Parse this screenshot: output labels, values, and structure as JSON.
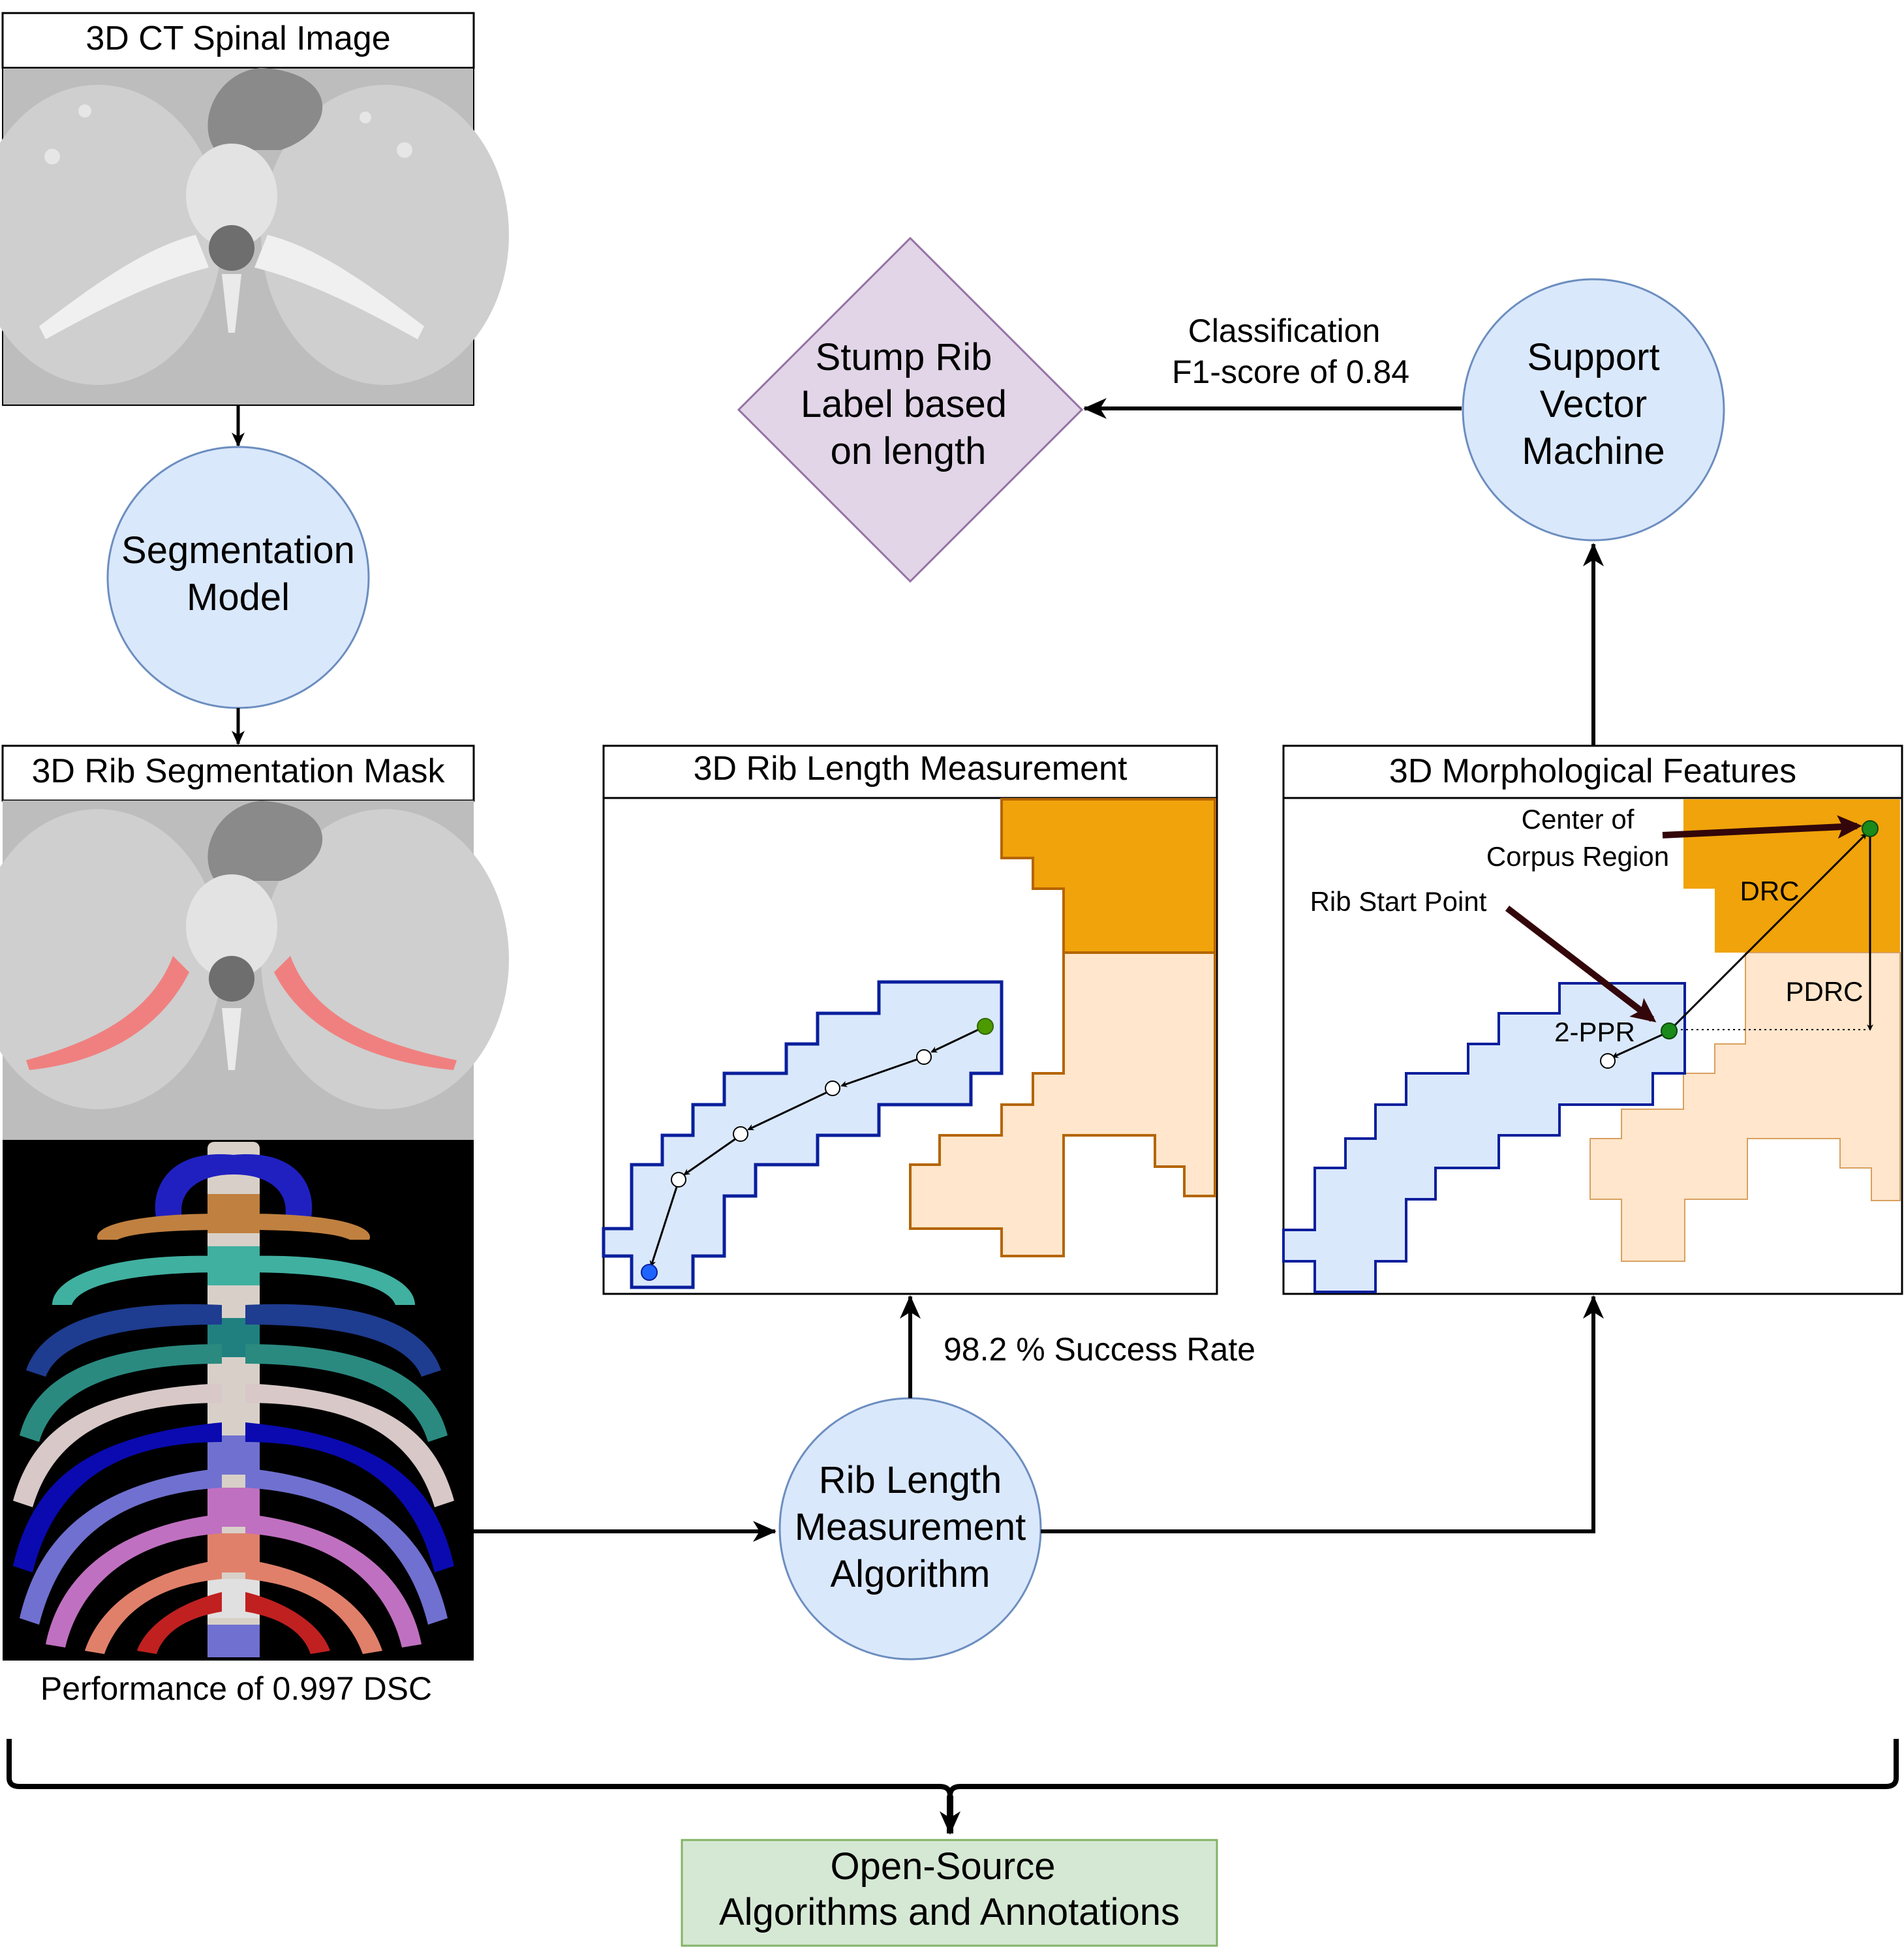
{
  "panels": {
    "ct_image_title": "3D CT Spinal Image",
    "seg_mask_title": "3D Rib Segmentation Mask",
    "rib_length_title": "3D Rib Length Measurement",
    "morph_title": "3D Morphological Features"
  },
  "nodes": {
    "segmentation_model": [
      "Segmentation",
      "Model"
    ],
    "support_vector_machine": [
      "Support",
      "Vector",
      "Machine"
    ],
    "stump_rib": [
      "Stump Rib",
      "Label based",
      "on length"
    ],
    "rib_length_algorithm": [
      "Rib Length",
      "Measurement",
      "Algorithm"
    ],
    "open_source": [
      "Open-Source",
      "Algorithms and Annotations"
    ]
  },
  "annotations": {
    "dsc": "Performance of 0.997 DSC",
    "success_rate": "98.2 % Success Rate",
    "classification": [
      "Classification",
      "F1-score of 0.84"
    ]
  },
  "morph_labels": {
    "center_corpus": [
      "Center of",
      "Corpus Region"
    ],
    "rib_start": "Rib Start Point",
    "drc": "DRC",
    "pdrc": "PDRC",
    "ppr": "2-PPR"
  },
  "colors": {
    "node_fill": "#dae8fc",
    "node_stroke": "#6c8ebf",
    "diamond_fill": "#e1d5e7",
    "diamond_stroke": "#9673a6",
    "green_fill": "#d5e8d4",
    "green_stroke": "#82b366",
    "rib_fill": "#dae8fc",
    "rib_stroke": "#0a1f9c",
    "corpus_fill": "#f0a30a",
    "soft_fill": "#ffe6cc",
    "soft_stroke": "#b46504",
    "dark_arrow": "#33060a"
  }
}
